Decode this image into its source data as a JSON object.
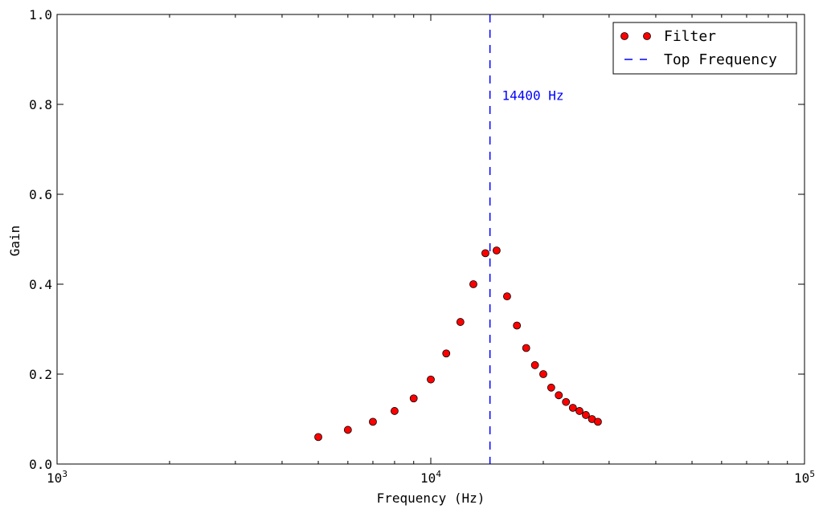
{
  "chart_data": {
    "type": "scatter",
    "xscale": "log",
    "xlim": [
      1000,
      100000
    ],
    "ylim": [
      0.0,
      1.0
    ],
    "xlabel": "Frequency (Hz)",
    "ylabel": "Gain",
    "title": "",
    "grid": false,
    "legend_position": "top-right",
    "x_ticks": [
      {
        "value": 1000,
        "base": "10",
        "exp": "3"
      },
      {
        "value": 10000,
        "base": "10",
        "exp": "4"
      },
      {
        "value": 100000,
        "base": "10",
        "exp": "5"
      }
    ],
    "y_ticks": [
      {
        "value": 0.0,
        "label": "0.0"
      },
      {
        "value": 0.2,
        "label": "0.2"
      },
      {
        "value": 0.4,
        "label": "0.4"
      },
      {
        "value": 0.6,
        "label": "0.6"
      },
      {
        "value": 0.8,
        "label": "0.8"
      },
      {
        "value": 1.0,
        "label": "1.0"
      }
    ],
    "series": [
      {
        "name": "Filter",
        "marker": "circle",
        "color": "#ff0000",
        "points": [
          {
            "x": 5000,
            "y": 0.06
          },
          {
            "x": 6000,
            "y": 0.076
          },
          {
            "x": 7000,
            "y": 0.094
          },
          {
            "x": 8000,
            "y": 0.118
          },
          {
            "x": 9000,
            "y": 0.146
          },
          {
            "x": 10000,
            "y": 0.188
          },
          {
            "x": 11000,
            "y": 0.246
          },
          {
            "x": 12000,
            "y": 0.316
          },
          {
            "x": 13000,
            "y": 0.4
          },
          {
            "x": 14000,
            "y": 0.469
          },
          {
            "x": 15000,
            "y": 0.475
          },
          {
            "x": 16000,
            "y": 0.373
          },
          {
            "x": 17000,
            "y": 0.308
          },
          {
            "x": 18000,
            "y": 0.258
          },
          {
            "x": 19000,
            "y": 0.22
          },
          {
            "x": 20000,
            "y": 0.2
          },
          {
            "x": 21000,
            "y": 0.17
          },
          {
            "x": 22000,
            "y": 0.153
          },
          {
            "x": 23000,
            "y": 0.138
          },
          {
            "x": 24000,
            "y": 0.125
          },
          {
            "x": 25000,
            "y": 0.118
          },
          {
            "x": 26000,
            "y": 0.109
          },
          {
            "x": 27000,
            "y": 0.1
          },
          {
            "x": 28000,
            "y": 0.094
          }
        ]
      },
      {
        "name": "Top Frequency",
        "type": "vline",
        "linestyle": "dashed",
        "color": "#0000ff",
        "x": 14400
      }
    ],
    "annotations": [
      {
        "text": "14400 Hz",
        "x": 15500,
        "y": 0.81,
        "color": "#0000ff"
      }
    ]
  }
}
